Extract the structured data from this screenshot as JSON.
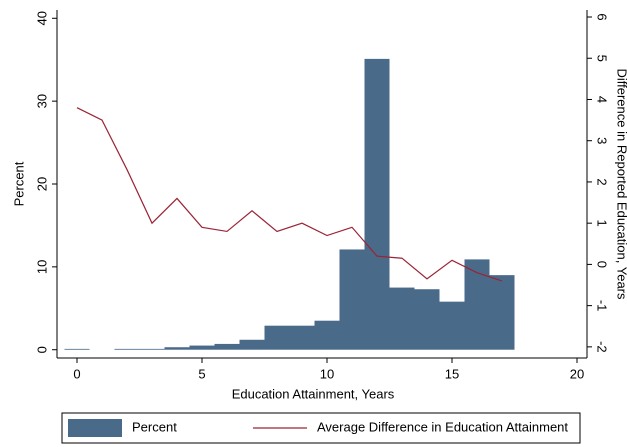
{
  "chart_data": {
    "type": "bar_line",
    "x_label": "Education Attainment, Years",
    "y_label": "Percent",
    "y2_label": "Difference in Reported Education, Years",
    "xlim": [
      -0.8,
      20.4
    ],
    "xticks": [
      0,
      5,
      10,
      15,
      20
    ],
    "ylim": [
      -1,
      41
    ],
    "yticks": [
      0,
      10,
      20,
      30,
      40
    ],
    "y2lim": [
      -2.27,
      6.17
    ],
    "y2ticks": [
      -2,
      -1,
      0,
      1,
      2,
      3,
      4,
      5,
      6
    ],
    "legend": "bottom",
    "series": [
      {
        "name": "Percent",
        "color": "#4a6a8a",
        "kind": "bar",
        "x": [
          0,
          2,
          3,
          4,
          5,
          6,
          7,
          8,
          9,
          10,
          11,
          12,
          13,
          14,
          15,
          16,
          17
        ],
        "values": [
          0.1,
          0.1,
          0.1,
          0.3,
          0.5,
          0.7,
          1.2,
          2.9,
          2.9,
          3.5,
          12.1,
          35.1,
          7.5,
          7.3,
          5.8,
          10.9,
          9.0
        ]
      },
      {
        "name": "Average Difference in Education Attainment",
        "color": "#9b2335",
        "kind": "line",
        "axis": "y2",
        "x": [
          0,
          1,
          2,
          3,
          4,
          5,
          6,
          7,
          8,
          9,
          10,
          11,
          12,
          13,
          14,
          15,
          16,
          17
        ],
        "values": [
          3.8,
          3.5,
          2.3,
          1.0,
          1.6,
          0.9,
          0.8,
          1.3,
          0.8,
          1.0,
          0.7,
          0.9,
          0.2,
          0.15,
          -0.35,
          0.1,
          -0.2,
          -0.4
        ]
      }
    ]
  }
}
